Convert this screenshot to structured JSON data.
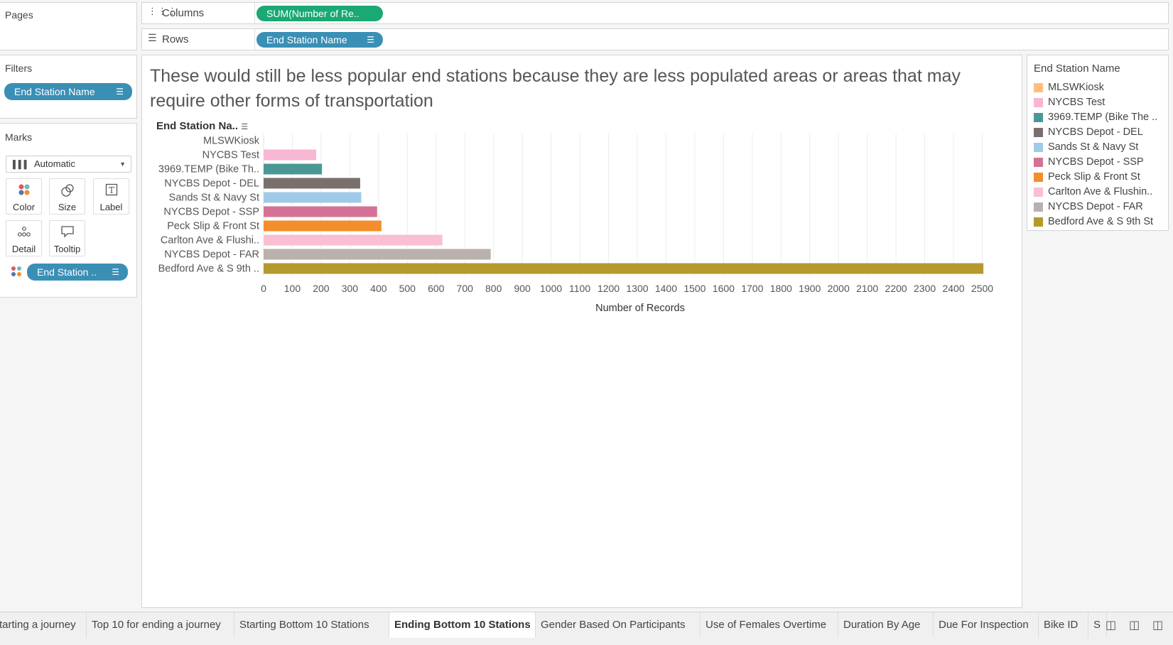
{
  "pages": {
    "title": "Pages"
  },
  "shelves": {
    "columns_label": "Columns",
    "columns_pill": "SUM(Number of Re..",
    "rows_label": "Rows",
    "rows_pill": "End Station Name"
  },
  "filters": {
    "title": "Filters",
    "pill": "End Station Name"
  },
  "marks": {
    "title": "Marks",
    "type": "Automatic",
    "buttons": {
      "color": "Color",
      "size": "Size",
      "label": "Label",
      "detail": "Detail",
      "tooltip": "Tooltip"
    },
    "color_pill": "End Station .."
  },
  "view": {
    "title": "These would still be less popular end stations because they are less populated areas or areas that may require other forms of transportation",
    "row_header": "End Station Na.."
  },
  "legend": {
    "title": "End Station Name",
    "items": [
      {
        "label": "MLSWKiosk",
        "color": "#ffbe7d"
      },
      {
        "label": "NYCBS Test",
        "color": "#f7b6d2"
      },
      {
        "label": "3969.TEMP (Bike The ..",
        "color": "#499894"
      },
      {
        "label": "NYCBS Depot - DEL",
        "color": "#79706e"
      },
      {
        "label": "Sands St & Navy St",
        "color": "#a0cbe8"
      },
      {
        "label": "NYCBS Depot - SSP",
        "color": "#d37295"
      },
      {
        "label": "Peck Slip & Front St",
        "color": "#f28e2b"
      },
      {
        "label": "Carlton Ave & Flushin..",
        "color": "#fabfd2"
      },
      {
        "label": "NYCBS Depot - FAR",
        "color": "#bab0ac"
      },
      {
        "label": "Bedford Ave & S 9th St",
        "color": "#b6992d"
      }
    ]
  },
  "chart_data": {
    "type": "bar",
    "orientation": "horizontal",
    "categories": [
      "MLSWKiosk",
      "NYCBS Test",
      "3969.TEMP (Bike Th..",
      "NYCBS Depot - DEL",
      "Sands St & Navy St",
      "NYCBS Depot - SSP",
      "Peck Slip & Front St",
      "Carlton Ave & Flushi..",
      "NYCBS Depot - FAR",
      "Bedford Ave & S 9th .."
    ],
    "values": [
      1,
      183,
      203,
      336,
      340,
      395,
      410,
      622,
      790,
      2504
    ],
    "colors": [
      "#ffbe7d",
      "#f7b6d2",
      "#499894",
      "#79706e",
      "#a0cbe8",
      "#d37295",
      "#f28e2b",
      "#fabfd2",
      "#bab0ac",
      "#b6992d"
    ],
    "xlabel": "Number of Records",
    "xlim": [
      0,
      2600
    ],
    "xticks": [
      0,
      100,
      200,
      300,
      400,
      500,
      600,
      700,
      800,
      900,
      1000,
      1100,
      1200,
      1300,
      1400,
      1500,
      1600,
      1700,
      1800,
      1900,
      2000,
      2100,
      2200,
      2300,
      2400,
      2500
    ],
    "grid": true
  },
  "tabs": [
    "tarting a journey",
    "Top 10 for ending a journey",
    "Starting Bottom 10 Stations",
    "Ending Bottom 10 Stations",
    "Gender Based On Participants",
    "Use of Females Overtime",
    "Duration By Age",
    "Due For Inspection",
    "Bike ID",
    "S"
  ],
  "active_tab": "Ending Bottom 10 Stations",
  "icons": {
    "new_sheet": "new-worksheet-icon",
    "new_dashboard": "new-dashboard-icon",
    "new_story": "new-story-icon"
  }
}
